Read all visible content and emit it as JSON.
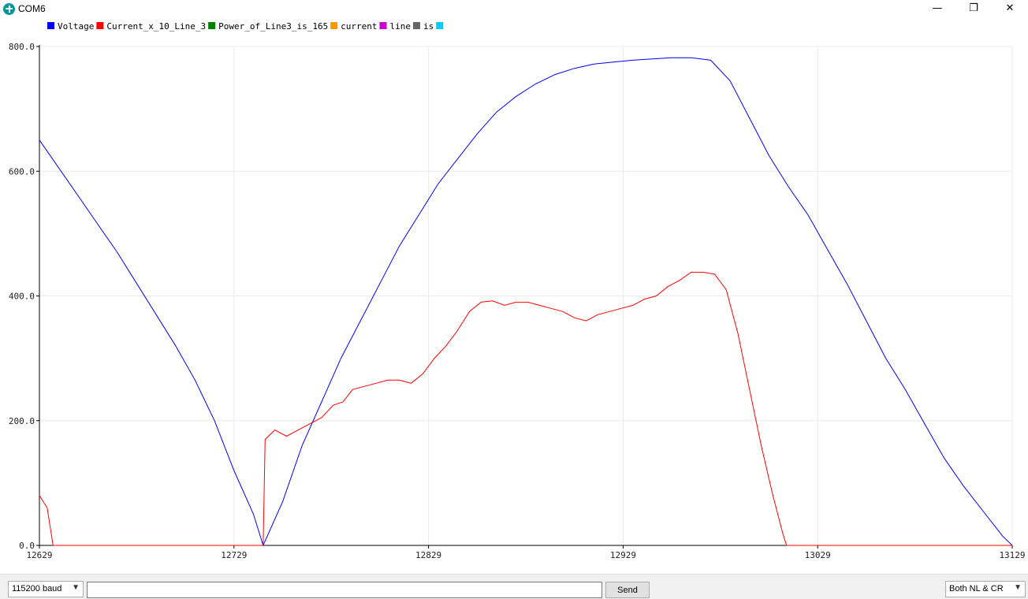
{
  "window": {
    "title": "COM6",
    "minimize_glyph": "—",
    "maximize_glyph": "❐",
    "close_glyph": "✕",
    "icon": "arduino-logo-icon"
  },
  "bottom_bar": {
    "baud_value": "115200 baud",
    "input_value": "",
    "send_label": "Send",
    "line_ending_value": "Both NL & CR",
    "dropdown_icon": "chevron-down-icon"
  },
  "chart_data": {
    "type": "line",
    "xlim": [
      12629,
      13129
    ],
    "ylim": [
      0,
      800
    ],
    "x_ticks": [
      12629,
      12729,
      12829,
      12929,
      13029,
      13129
    ],
    "y_ticks": [
      "0.0",
      "200.0",
      "400.0",
      "600.0",
      "800.0"
    ],
    "grid": true,
    "legend_placement": "top-left",
    "legend": [
      {
        "name": "Voltage",
        "color": "#0000ff"
      },
      {
        "name": "Current_x_10_Line_3",
        "color": "#ff0000"
      },
      {
        "name": "Power_of_Line3_is_165",
        "color": "#008000"
      },
      {
        "name": "current",
        "color": "#ff9900"
      },
      {
        "name": "line",
        "color": "#cc00cc"
      },
      {
        "name": "is",
        "color": "#666666"
      },
      {
        "name": "",
        "color": "#00ccff"
      }
    ],
    "series": [
      {
        "name": "Voltage",
        "color": "#0000ff",
        "points": [
          [
            12629,
            650
          ],
          [
            12639,
            605
          ],
          [
            12649,
            560
          ],
          [
            12659,
            515
          ],
          [
            12669,
            470
          ],
          [
            12679,
            420
          ],
          [
            12689,
            370
          ],
          [
            12699,
            320
          ],
          [
            12709,
            265
          ],
          [
            12719,
            200
          ],
          [
            12729,
            120
          ],
          [
            12739,
            50
          ],
          [
            12744,
            0
          ],
          [
            12754,
            70
          ],
          [
            12764,
            160
          ],
          [
            12774,
            230
          ],
          [
            12784,
            300
          ],
          [
            12794,
            360
          ],
          [
            12804,
            420
          ],
          [
            12814,
            480
          ],
          [
            12824,
            530
          ],
          [
            12834,
            580
          ],
          [
            12844,
            620
          ],
          [
            12854,
            660
          ],
          [
            12864,
            695
          ],
          [
            12874,
            720
          ],
          [
            12884,
            740
          ],
          [
            12894,
            755
          ],
          [
            12904,
            765
          ],
          [
            12914,
            772
          ],
          [
            12924,
            775
          ],
          [
            12934,
            778
          ],
          [
            12944,
            780
          ],
          [
            12954,
            782
          ],
          [
            12964,
            782
          ],
          [
            12974,
            778
          ],
          [
            12984,
            745
          ],
          [
            12994,
            685
          ],
          [
            13004,
            625
          ],
          [
            13014,
            575
          ],
          [
            13024,
            530
          ],
          [
            13034,
            475
          ],
          [
            13044,
            420
          ],
          [
            13054,
            360
          ],
          [
            13064,
            300
          ],
          [
            13074,
            250
          ],
          [
            13084,
            195
          ],
          [
            13094,
            140
          ],
          [
            13104,
            95
          ],
          [
            13114,
            55
          ],
          [
            13124,
            15
          ],
          [
            13129,
            0
          ]
        ]
      },
      {
        "name": "Current_x_10_Line_3",
        "color": "#ff0000",
        "points": [
          [
            12629,
            80
          ],
          [
            12633,
            60
          ],
          [
            12636,
            0
          ],
          [
            12744,
            0
          ],
          [
            12745,
            170
          ],
          [
            12750,
            185
          ],
          [
            12756,
            175
          ],
          [
            12762,
            185
          ],
          [
            12768,
            195
          ],
          [
            12774,
            205
          ],
          [
            12780,
            225
          ],
          [
            12785,
            230
          ],
          [
            12790,
            250
          ],
          [
            12796,
            255
          ],
          [
            12802,
            260
          ],
          [
            12808,
            265
          ],
          [
            12814,
            265
          ],
          [
            12820,
            260
          ],
          [
            12826,
            275
          ],
          [
            12832,
            300
          ],
          [
            12838,
            320
          ],
          [
            12844,
            345
          ],
          [
            12850,
            375
          ],
          [
            12856,
            390
          ],
          [
            12862,
            392
          ],
          [
            12868,
            385
          ],
          [
            12874,
            390
          ],
          [
            12880,
            390
          ],
          [
            12886,
            385
          ],
          [
            12892,
            380
          ],
          [
            12898,
            375
          ],
          [
            12904,
            365
          ],
          [
            12910,
            360
          ],
          [
            12916,
            370
          ],
          [
            12922,
            375
          ],
          [
            12928,
            380
          ],
          [
            12934,
            385
          ],
          [
            12940,
            395
          ],
          [
            12946,
            400
          ],
          [
            12952,
            415
          ],
          [
            12958,
            425
          ],
          [
            12964,
            438
          ],
          [
            12970,
            438
          ],
          [
            12976,
            435
          ],
          [
            12982,
            410
          ],
          [
            12988,
            340
          ],
          [
            12994,
            250
          ],
          [
            13000,
            160
          ],
          [
            13006,
            80
          ],
          [
            13011,
            20
          ],
          [
            13013,
            0
          ],
          [
            13129,
            0
          ]
        ]
      }
    ]
  }
}
